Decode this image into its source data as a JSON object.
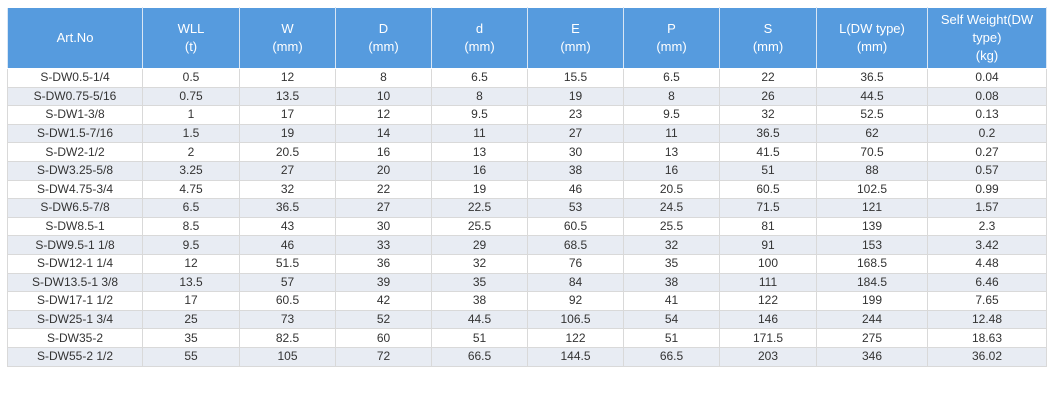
{
  "table": {
    "headers": [
      {
        "main": "Art.No",
        "unit": ""
      },
      {
        "main": "WLL",
        "unit": "(t)"
      },
      {
        "main": "W",
        "unit": "(mm)"
      },
      {
        "main": "D",
        "unit": "(mm)"
      },
      {
        "main": "d",
        "unit": "(mm)"
      },
      {
        "main": "E",
        "unit": "(mm)"
      },
      {
        "main": "P",
        "unit": "(mm)"
      },
      {
        "main": "S",
        "unit": "(mm)"
      },
      {
        "main": "L(DW type)",
        "unit": "(mm)"
      },
      {
        "main": "Self Weight(DW type)",
        "unit": "(kg)"
      }
    ],
    "rows": [
      [
        "S-DW0.5-1/4",
        "0.5",
        "12",
        "8",
        "6.5",
        "15.5",
        "6.5",
        "22",
        "36.5",
        "0.04"
      ],
      [
        "S-DW0.75-5/16",
        "0.75",
        "13.5",
        "10",
        "8",
        "19",
        "8",
        "26",
        "44.5",
        "0.08"
      ],
      [
        "S-DW1-3/8",
        "1",
        "17",
        "12",
        "9.5",
        "23",
        "9.5",
        "32",
        "52.5",
        "0.13"
      ],
      [
        "S-DW1.5-7/16",
        "1.5",
        "19",
        "14",
        "11",
        "27",
        "11",
        "36.5",
        "62",
        "0.2"
      ],
      [
        "S-DW2-1/2",
        "2",
        "20.5",
        "16",
        "13",
        "30",
        "13",
        "41.5",
        "70.5",
        "0.27"
      ],
      [
        "S-DW3.25-5/8",
        "3.25",
        "27",
        "20",
        "16",
        "38",
        "16",
        "51",
        "88",
        "0.57"
      ],
      [
        "S-DW4.75-3/4",
        "4.75",
        "32",
        "22",
        "19",
        "46",
        "20.5",
        "60.5",
        "102.5",
        "0.99"
      ],
      [
        "S-DW6.5-7/8",
        "6.5",
        "36.5",
        "27",
        "22.5",
        "53",
        "24.5",
        "71.5",
        "121",
        "1.57"
      ],
      [
        "S-DW8.5-1",
        "8.5",
        "43",
        "30",
        "25.5",
        "60.5",
        "25.5",
        "81",
        "139",
        "2.3"
      ],
      [
        "S-DW9.5-1 1/8",
        "9.5",
        "46",
        "33",
        "29",
        "68.5",
        "32",
        "91",
        "153",
        "3.42"
      ],
      [
        "S-DW12-1 1/4",
        "12",
        "51.5",
        "36",
        "32",
        "76",
        "35",
        "100",
        "168.5",
        "4.48"
      ],
      [
        "S-DW13.5-1 3/8",
        "13.5",
        "57",
        "39",
        "35",
        "84",
        "38",
        "111",
        "184.5",
        "6.46"
      ],
      [
        "S-DW17-1 1/2",
        "17",
        "60.5",
        "42",
        "38",
        "92",
        "41",
        "122",
        "199",
        "7.65"
      ],
      [
        "S-DW25-1 3/4",
        "25",
        "73",
        "52",
        "44.5",
        "106.5",
        "54",
        "146",
        "244",
        "12.48"
      ],
      [
        "S-DW35-2",
        "35",
        "82.5",
        "60",
        "51",
        "122",
        "51",
        "171.5",
        "275",
        "18.63"
      ],
      [
        "S-DW55-2 1/2",
        "55",
        "105",
        "72",
        "66.5",
        "144.5",
        "66.5",
        "203",
        "346",
        "36.02"
      ]
    ]
  },
  "colors": {
    "header_bg": "#569bde",
    "header_text": "#ffffff",
    "stripe_bg": "#e8ecf3",
    "cell_text": "#333333",
    "border": "#d9d9d9"
  }
}
